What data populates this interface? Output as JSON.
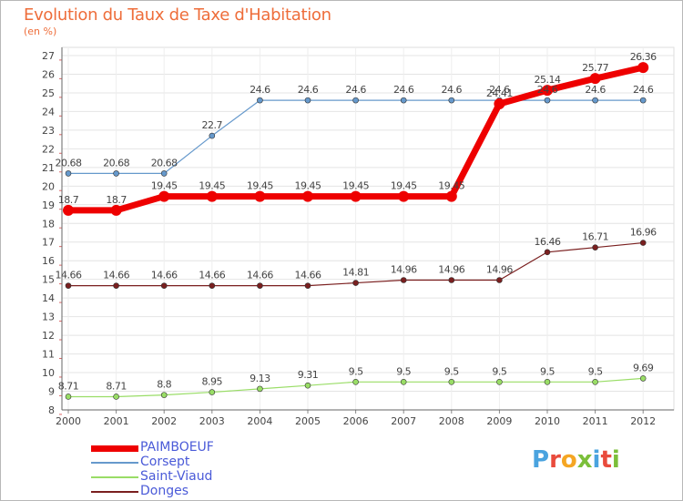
{
  "header": {
    "title": "Evolution du Taux de Taxe d'Habitation",
    "subtitle": "(en %)"
  },
  "logo": {
    "text": "Proxiti"
  },
  "chart_data": {
    "type": "line",
    "title": "Evolution du Taux de Taxe d'Habitation",
    "subtitle": "(en %)",
    "xlabel": "",
    "ylabel": "",
    "x": [
      "2000",
      "2001",
      "2002",
      "2003",
      "2004",
      "2005",
      "2006",
      "2007",
      "2008",
      "2009",
      "2010",
      "2011",
      "2012"
    ],
    "ylim": [
      8,
      27
    ],
    "yticks": [
      8,
      9,
      10,
      11,
      12,
      13,
      14,
      15,
      16,
      17,
      18,
      19,
      20,
      21,
      22,
      23,
      24,
      25,
      26,
      27
    ],
    "grid": "horizontal",
    "legend_position": "bottom-left",
    "series": [
      {
        "name": "PAIMBOEUF",
        "color": "#ee0000",
        "values": [
          18.7,
          18.7,
          19.45,
          19.45,
          19.45,
          19.45,
          19.45,
          19.45,
          19.45,
          24.41,
          25.14,
          25.77,
          26.36
        ],
        "labels": [
          "18.7",
          "18.7",
          "19.45",
          "19.45",
          "19.45",
          "19.45",
          "19.45",
          "19.45",
          "19.45",
          "24.41",
          "25.14",
          "25.77",
          "26.36"
        ]
      },
      {
        "name": "Corsept",
        "color": "#6699cc",
        "values": [
          20.68,
          20.68,
          20.68,
          22.7,
          24.6,
          24.6,
          24.6,
          24.6,
          24.6,
          24.6,
          24.6,
          24.6,
          24.6
        ],
        "labels": [
          "20.68",
          "20.68",
          "20.68",
          "22.7",
          "24.6",
          "24.6",
          "24.6",
          "24.6",
          "24.6",
          "24.6",
          "24.6",
          "24.6",
          "24.6"
        ]
      },
      {
        "name": "Saint-Viaud",
        "color": "#99dd66",
        "values": [
          8.71,
          8.71,
          8.8,
          8.95,
          9.13,
          9.31,
          9.5,
          9.5,
          9.5,
          9.5,
          9.5,
          9.5,
          9.69
        ],
        "labels": [
          "8.71",
          "8.71",
          "8.8",
          "8.95",
          "9.13",
          "9.31",
          "9.5",
          "9.5",
          "9.5",
          "9.5",
          "9.5",
          "9.5",
          "9.69"
        ]
      },
      {
        "name": "Donges",
        "color": "#7a1f1f",
        "values": [
          14.66,
          14.66,
          14.66,
          14.66,
          14.66,
          14.66,
          14.81,
          14.96,
          14.96,
          14.96,
          16.46,
          16.71,
          16.96
        ],
        "labels": [
          "14.66",
          "14.66",
          "14.66",
          "14.66",
          "14.66",
          "14.66",
          "14.81",
          "14.96",
          "14.96",
          "14.96",
          "16.46",
          "16.71",
          "16.96"
        ]
      }
    ]
  }
}
